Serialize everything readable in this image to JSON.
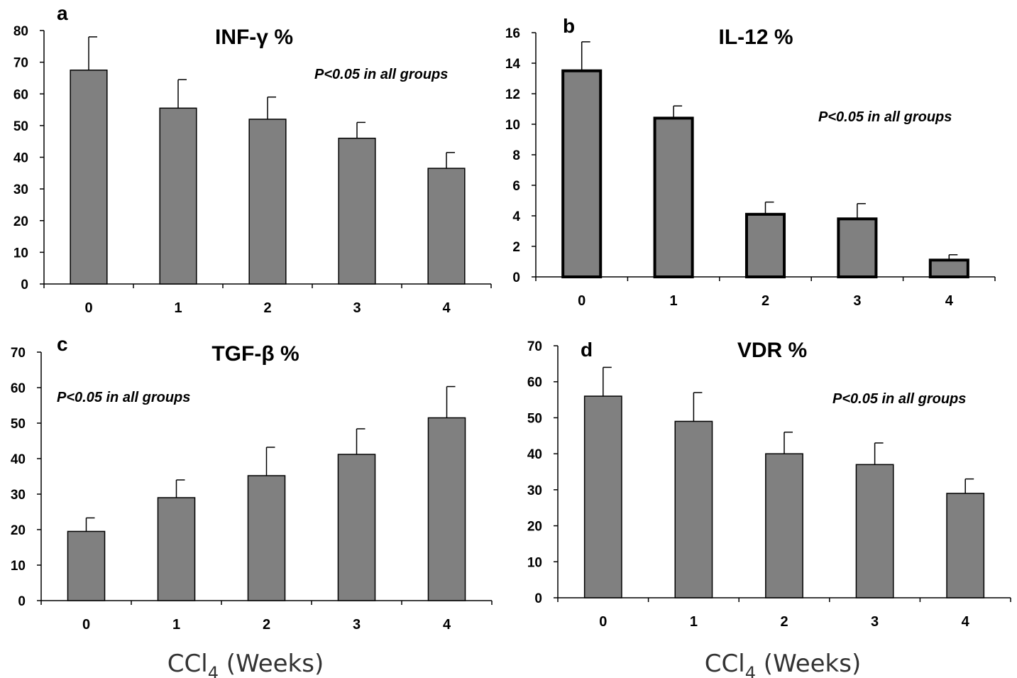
{
  "chart_data": [
    {
      "type": "bar",
      "panel": "a",
      "title": "INF-γ %",
      "annotation": "P<0.05 in all groups",
      "categories": [
        "0",
        "1",
        "2",
        "3",
        "4"
      ],
      "values": [
        67.5,
        55.5,
        52,
        46,
        36.5
      ],
      "errors": [
        10.5,
        9,
        7,
        5,
        5
      ],
      "ylim": [
        0,
        80
      ],
      "yticks": [
        "0",
        "10",
        "20",
        "30",
        "40",
        "50",
        "60",
        "70",
        "80"
      ],
      "grid": false,
      "bar_color": "#808080",
      "edge": "thin"
    },
    {
      "type": "bar",
      "panel": "b",
      "title": "IL-12 %",
      "annotation": "P<0.05 in all groups",
      "categories": [
        "0",
        "1",
        "2",
        "3",
        "4"
      ],
      "values": [
        13.5,
        10.4,
        4.1,
        3.8,
        1.1
      ],
      "errors": [
        1.9,
        0.8,
        0.8,
        1.0,
        0.35
      ],
      "ylim": [
        0,
        16
      ],
      "yticks": [
        "0",
        "2",
        "4",
        "6",
        "8",
        "10",
        "12",
        "14",
        "16"
      ],
      "grid": false,
      "bar_color": "#808080",
      "edge": "thick"
    },
    {
      "type": "bar",
      "panel": "c",
      "title": "TGF-β %",
      "annotation": "P<0.05 in all groups",
      "categories": [
        "0",
        "1",
        "2",
        "3",
        "4"
      ],
      "values": [
        19.5,
        29,
        35.2,
        41.2,
        51.5
      ],
      "errors": [
        3.8,
        5,
        8,
        7.2,
        8.8
      ],
      "ylim": [
        0,
        70
      ],
      "yticks": [
        "0",
        "10",
        "20",
        "30",
        "40",
        "50",
        "60",
        "70"
      ],
      "xlabel_main": "CCl",
      "xlabel_sub": "4",
      "xlabel_rest": " (Weeks)",
      "grid": false,
      "bar_color": "#808080",
      "edge": "thin"
    },
    {
      "type": "bar",
      "panel": "d",
      "title": "VDR %",
      "annotation": "P<0.05 in all groups",
      "categories": [
        "0",
        "1",
        "2",
        "3",
        "4"
      ],
      "values": [
        56,
        49,
        40,
        37,
        29
      ],
      "errors": [
        8,
        8,
        6,
        6,
        4
      ],
      "ylim": [
        0,
        70
      ],
      "yticks": [
        "0",
        "10",
        "20",
        "30",
        "40",
        "50",
        "60",
        "70"
      ],
      "xlabel_main": "CCl",
      "xlabel_sub": "4",
      "xlabel_rest": " (Weeks)",
      "grid": false,
      "bar_color": "#808080",
      "edge": "thin"
    }
  ]
}
